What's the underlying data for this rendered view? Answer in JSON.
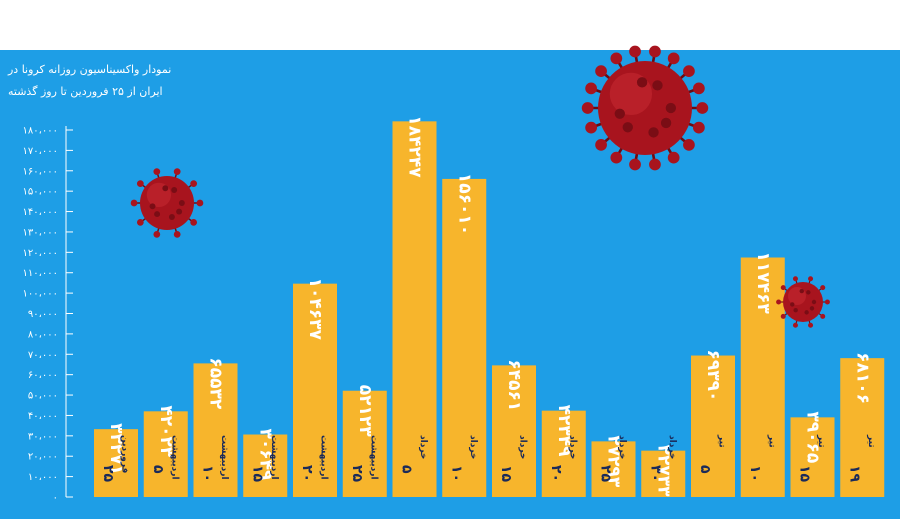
{
  "chart_data": {
    "type": "bar",
    "title_lines": [
      "نمودار واکسیناسیون روزانه کرونا در",
      "ایران از ۲۵ فروردین تا روز گذشته"
    ],
    "y_ticks": [
      "۰",
      "۱۰،۰۰۰",
      "۲۰،۰۰۰",
      "۳۰،۰۰۰",
      "۴۰،۰۰۰",
      "۵۰،۰۰۰",
      "۶۰،۰۰۰",
      "۷۰،۰۰۰",
      "۸۰،۰۰۰",
      "۹۰،۰۰۰",
      "۱۰۰،۰۰۰",
      "۱۱۰،۰۰۰",
      "۱۲۰،۰۰۰",
      "۱۳۰،۰۰۰",
      "۱۴۰،۰۰۰",
      "۱۵۰،۰۰۰",
      "۱۶۰،۰۰۰",
      "۱۷۰،۰۰۰",
      "۱۸۰،۰۰۰"
    ],
    "ylim": [
      0,
      180000
    ],
    "values": [
      33271,
      42023,
      65532,
      30649,
      104637,
      52123,
      184247,
      156010,
      64561,
      42349,
      27293,
      22733,
      69390,
      117463,
      39065,
      68106
    ],
    "value_labels": [
      "۳۳۲۷۱",
      "۴۲۰۲۳",
      "۶۵۵۳۲",
      "۳۰۶۴۹",
      "۱۰۴۶۳۷",
      "۵۲۱۲۳",
      "۱۸۴۲۴۷",
      "۱۵۶۰۱۰",
      "۶۴۵۶۱",
      "۴۲۳۴۹",
      "۲۷۲۹۳",
      "۲۲۷۳۳",
      "۶۹۳۹۰",
      "۱۱۷۴۶۳",
      "۳۹۰۶۵",
      "۶۸۱۰۶"
    ],
    "category_days": [
      "۲۵",
      "۵",
      "۱۰",
      "۱۵",
      "۲۰",
      "۲۵",
      "۵",
      "۱۰",
      "۱۵",
      "۲۰",
      "۲۵",
      "۳۰",
      "۵",
      "۱۰",
      "۱۵",
      "۱۹"
    ],
    "category_months": [
      "فروردین",
      "اردیبهشت",
      "اردیبهشت",
      "اردیبهشت",
      "اردیبهشت",
      "اردیبهشت",
      "خرداد",
      "خرداد",
      "خرداد",
      "خرداد",
      "خرداد",
      "خرداد",
      "تیر",
      "تیر",
      "تیر",
      "تیر"
    ],
    "grid": false,
    "colors": {
      "background": "#1e9ee6",
      "bar": "#f7b52c",
      "text": "#ffffff",
      "label_dark": "#1a2a5a",
      "virus": "#a8141e"
    }
  }
}
